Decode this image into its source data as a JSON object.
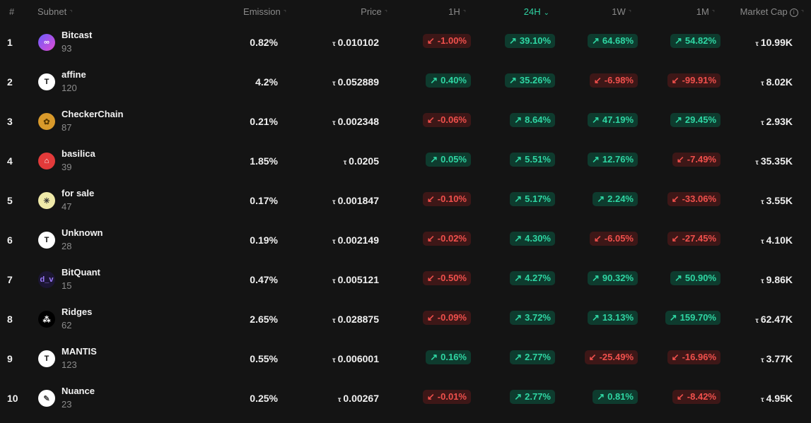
{
  "header": {
    "rank": "#",
    "subnet": "Subnet",
    "emission": "Emission",
    "price": "Price",
    "h1": "1H",
    "h24": "24H",
    "w1": "1W",
    "m1": "1M",
    "market_cap": "Market Cap",
    "sort_icon": "↑↓",
    "active_sort_icon": "⌄",
    "info_icon": "i"
  },
  "colors": {
    "up": "#2fd6a3",
    "down": "#f0504c",
    "active_header": "#2ed3a3",
    "background": "#141414"
  },
  "currency_symbol": "τ",
  "up_arrow": "↗",
  "down_arrow": "↙",
  "rows": [
    {
      "rank": "1",
      "name": "Bitcast",
      "netuid": "93",
      "emission": "0.82%",
      "price": "0.010102",
      "h1": "-1.00%",
      "h1_dir": "down",
      "h24": "39.10%",
      "h24_dir": "up",
      "w1": "64.68%",
      "w1_dir": "up",
      "m1": "54.82%",
      "m1_dir": "up",
      "mcap": "10.99K",
      "avatar_icon": "bitcast-logo-icon"
    },
    {
      "rank": "2",
      "name": "affine",
      "netuid": "120",
      "emission": "4.2%",
      "price": "0.052889",
      "h1": "0.40%",
      "h1_dir": "up",
      "h24": "35.26%",
      "h24_dir": "up",
      "w1": "-6.98%",
      "w1_dir": "down",
      "m1": "-99.91%",
      "m1_dir": "down",
      "mcap": "8.02K",
      "avatar_icon": "tao-logo-icon"
    },
    {
      "rank": "3",
      "name": "CheckerChain",
      "netuid": "87",
      "emission": "0.21%",
      "price": "0.002348",
      "h1": "-0.06%",
      "h1_dir": "down",
      "h24": "8.64%",
      "h24_dir": "up",
      "w1": "47.19%",
      "w1_dir": "up",
      "m1": "29.45%",
      "m1_dir": "up",
      "mcap": "2.93K",
      "avatar_icon": "checkerchain-logo-icon"
    },
    {
      "rank": "4",
      "name": "basilica",
      "netuid": "39",
      "emission": "1.85%",
      "price": "0.0205",
      "h1": "0.05%",
      "h1_dir": "up",
      "h24": "5.51%",
      "h24_dir": "up",
      "w1": "12.76%",
      "w1_dir": "up",
      "m1": "-7.49%",
      "m1_dir": "down",
      "mcap": "35.35K",
      "avatar_icon": "basilica-logo-icon"
    },
    {
      "rank": "5",
      "name": "for sale",
      "netuid": "47",
      "emission": "0.17%",
      "price": "0.001847",
      "h1": "-0.10%",
      "h1_dir": "down",
      "h24": "5.17%",
      "h24_dir": "up",
      "w1": "2.24%",
      "w1_dir": "up",
      "m1": "-33.06%",
      "m1_dir": "down",
      "mcap": "3.55K",
      "avatar_icon": "asterisk-logo-icon"
    },
    {
      "rank": "6",
      "name": "Unknown",
      "netuid": "28",
      "emission": "0.19%",
      "price": "0.002149",
      "h1": "-0.02%",
      "h1_dir": "down",
      "h24": "4.30%",
      "h24_dir": "up",
      "w1": "-6.05%",
      "w1_dir": "down",
      "m1": "-27.45%",
      "m1_dir": "down",
      "mcap": "4.10K",
      "avatar_icon": "tao-logo-icon"
    },
    {
      "rank": "7",
      "name": "BitQuant",
      "netuid": "15",
      "emission": "0.47%",
      "price": "0.005121",
      "h1": "-0.50%",
      "h1_dir": "down",
      "h24": "4.27%",
      "h24_dir": "up",
      "w1": "90.32%",
      "w1_dir": "up",
      "m1": "50.90%",
      "m1_dir": "up",
      "mcap": "9.86K",
      "avatar_icon": "bitquant-logo-icon"
    },
    {
      "rank": "8",
      "name": "Ridges",
      "netuid": "62",
      "emission": "2.65%",
      "price": "0.028875",
      "h1": "-0.09%",
      "h1_dir": "down",
      "h24": "3.72%",
      "h24_dir": "up",
      "w1": "13.13%",
      "w1_dir": "up",
      "m1": "159.70%",
      "m1_dir": "up",
      "mcap": "62.47K",
      "avatar_icon": "ridges-logo-icon"
    },
    {
      "rank": "9",
      "name": "MANTIS",
      "netuid": "123",
      "emission": "0.55%",
      "price": "0.006001",
      "h1": "0.16%",
      "h1_dir": "up",
      "h24": "2.77%",
      "h24_dir": "up",
      "w1": "-25.49%",
      "w1_dir": "down",
      "m1": "-16.96%",
      "m1_dir": "down",
      "mcap": "3.77K",
      "avatar_icon": "tao-logo-icon"
    },
    {
      "rank": "10",
      "name": "Nuance",
      "netuid": "23",
      "emission": "0.25%",
      "price": "0.00267",
      "h1": "-0.01%",
      "h1_dir": "down",
      "h24": "2.77%",
      "h24_dir": "up",
      "w1": "0.81%",
      "w1_dir": "up",
      "m1": "-8.42%",
      "m1_dir": "down",
      "mcap": "4.95K",
      "avatar_icon": "feather-logo-icon"
    }
  ]
}
